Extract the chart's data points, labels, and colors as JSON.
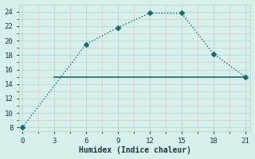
{
  "line1_x": [
    0,
    6,
    9,
    12,
    15,
    18,
    21
  ],
  "line1_y": [
    8,
    19.5,
    21.8,
    23.8,
    23.8,
    18.2,
    15
  ],
  "line2_x": [
    3,
    15,
    21
  ],
  "line2_y": [
    15,
    15,
    15
  ],
  "xlim": [
    -0.3,
    21.5
  ],
  "ylim": [
    7.5,
    25
  ],
  "xticks": [
    0,
    3,
    6,
    9,
    12,
    15,
    18,
    21
  ],
  "yticks": [
    8,
    10,
    12,
    14,
    16,
    18,
    20,
    22,
    24
  ],
  "xlabel": "Humidex (Indice chaleur)",
  "line_color": "#1a6b6b",
  "bg_color": "#d6f0ee",
  "grid_color": "#c0dbd8",
  "grid_minor_color": "#e0f0ee",
  "font_color": "#1a3a3a"
}
